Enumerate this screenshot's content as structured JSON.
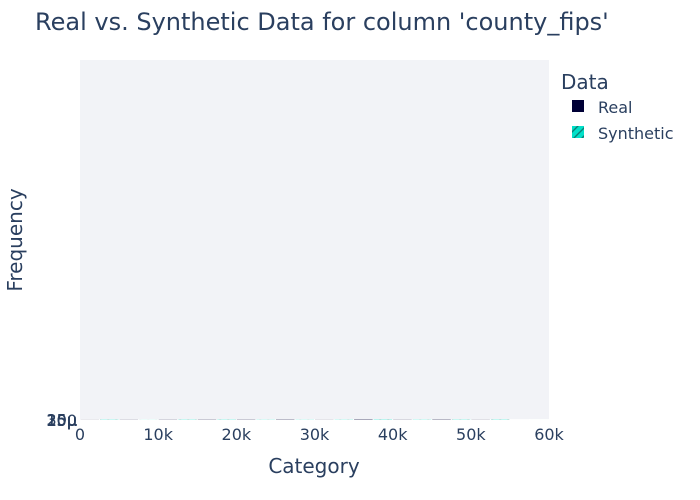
{
  "chart_data": {
    "type": "bar",
    "title": "Real vs. Synthetic Data for column 'county_fips'",
    "xlabel": "Category",
    "ylabel": "Frequency",
    "legend_title": "Data",
    "legend_position": "right",
    "grid": true,
    "xlim": [
      0,
      60000
    ],
    "ylim": [
      0,
      0.0345
    ],
    "x_ticks": [
      {
        "value": 0,
        "label": "0"
      },
      {
        "value": 10000,
        "label": "10k"
      },
      {
        "value": 20000,
        "label": "20k"
      },
      {
        "value": 30000,
        "label": "30k"
      },
      {
        "value": 40000,
        "label": "40k"
      },
      {
        "value": 50000,
        "label": "50k"
      },
      {
        "value": 60000,
        "label": "60k"
      }
    ],
    "y_ticks": [
      {
        "value": 0,
        "label": "0"
      },
      {
        "value": 5e-06,
        "label": "5μ"
      },
      {
        "value": 1e-05,
        "label": "10μ"
      },
      {
        "value": 1.5e-05,
        "label": "15μ"
      },
      {
        "value": 2e-05,
        "label": "20μ"
      },
      {
        "value": 2.5e-05,
        "label": "25μ"
      },
      {
        "value": 3e-05,
        "label": "30μ"
      }
    ],
    "bins": [
      [
        0,
        5000
      ],
      [
        5000,
        10000
      ],
      [
        10000,
        15000
      ],
      [
        15000,
        20000
      ],
      [
        20000,
        25000
      ],
      [
        25000,
        30000
      ],
      [
        30000,
        35000
      ],
      [
        35000,
        40000
      ],
      [
        40000,
        45000
      ],
      [
        45000,
        50000
      ],
      [
        50000,
        55000
      ],
      [
        55000,
        60000
      ]
    ],
    "series": [
      {
        "name": "Real",
        "color": "#000036",
        "pattern": "solid",
        "values": [
          8e-06,
          1.3e-05,
          1.6e-05,
          2e-05,
          2e-05,
          2.5e-05,
          1e-05,
          3.3e-05,
          1.5e-05,
          2.7e-05,
          1.2e-05,
          1e-06
        ]
      },
      {
        "name": "Synthetic",
        "color": "#01e0c9",
        "pattern": "hatch",
        "values": [
          2e-05,
          7e-06,
          2.1e-05,
          2.1e-05,
          1.4e-05,
          1.3e-05,
          1.6e-05,
          2.6e-05,
          1.7e-05,
          2.1e-05,
          2.3e-05,
          1e-06
        ]
      }
    ]
  }
}
